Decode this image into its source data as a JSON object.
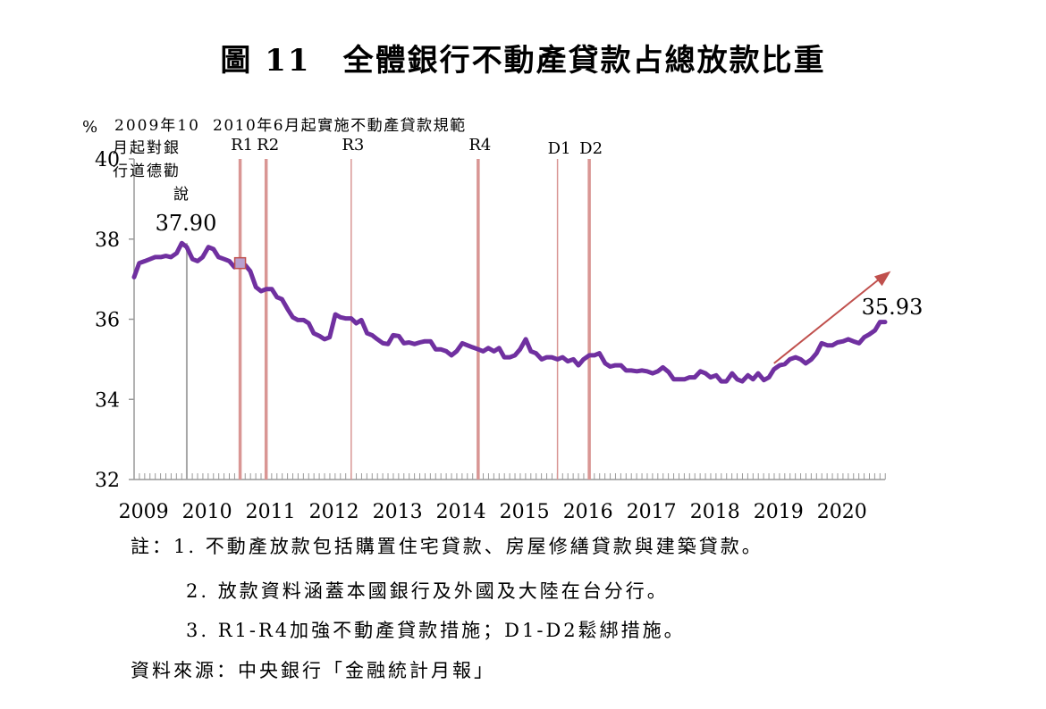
{
  "figure": {
    "title": "圖 11　全體銀行不動產貸款占總放款比重",
    "notes": [
      "註：1. 不動產放款包括購置住宅貸款、房屋修繕貸款與建築貸款。",
      "2. 放款資料涵蓋本國銀行及外國及大陸在台分行。",
      "3. R1-R4加強不動產貸款措施；D1-D2鬆綁措施。"
    ],
    "source": "資料來源：中央銀行「金融統計月報」"
  },
  "chart_data": {
    "type": "line",
    "title": "圖 11　全體銀行不動產貸款占總放款比重",
    "ylabel": "%",
    "xlabel": "",
    "ylim": [
      32,
      40
    ],
    "yticks": [
      32,
      34,
      36,
      38,
      40
    ],
    "x_start": 2009,
    "x_end": 2020.83,
    "x_ticks": [
      "2009",
      "2010",
      "2011",
      "2012",
      "2013",
      "2014",
      "2015",
      "2016",
      "2017",
      "2018",
      "2019",
      "2020"
    ],
    "series": [
      {
        "color": "#7030a0",
        "x": [
          2009.0,
          2009.08,
          2009.17,
          2009.25,
          2009.33,
          2009.42,
          2009.5,
          2009.58,
          2009.67,
          2009.75,
          2009.83,
          2009.92,
          2010.0,
          2010.08,
          2010.17,
          2010.25,
          2010.33,
          2010.42,
          2010.5,
          2010.58,
          2010.67,
          2010.75,
          2010.83,
          2010.92,
          2011.0,
          2011.08,
          2011.17,
          2011.25,
          2011.33,
          2011.42,
          2011.5,
          2011.58,
          2011.67,
          2011.75,
          2011.83,
          2011.92,
          2012.0,
          2012.08,
          2012.17,
          2012.25,
          2012.33,
          2012.42,
          2012.5,
          2012.58,
          2012.67,
          2012.75,
          2012.83,
          2012.92,
          2013.0,
          2013.08,
          2013.17,
          2013.25,
          2013.33,
          2013.42,
          2013.5,
          2013.58,
          2013.67,
          2013.75,
          2013.83,
          2013.92,
          2014.0,
          2014.08,
          2014.17,
          2014.25,
          2014.33,
          2014.42,
          2014.5,
          2014.58,
          2014.67,
          2014.75,
          2014.83,
          2014.92,
          2015.0,
          2015.08,
          2015.17,
          2015.25,
          2015.33,
          2015.42,
          2015.5,
          2015.58,
          2015.67,
          2015.75,
          2015.83,
          2015.92,
          2016.0,
          2016.08,
          2016.17,
          2016.25,
          2016.33,
          2016.42,
          2016.5,
          2016.58,
          2016.67,
          2016.75,
          2016.83,
          2016.92,
          2017.0,
          2017.08,
          2017.17,
          2017.25,
          2017.33,
          2017.42,
          2017.5,
          2017.58,
          2017.67,
          2017.75,
          2017.83,
          2017.92,
          2018.0,
          2018.08,
          2018.17,
          2018.25,
          2018.33,
          2018.42,
          2018.5,
          2018.58,
          2018.67,
          2018.75,
          2018.83,
          2018.92,
          2019.0,
          2019.08,
          2019.17,
          2019.25,
          2019.33,
          2019.42,
          2019.5,
          2019.58,
          2019.67,
          2019.75,
          2019.83,
          2019.92,
          2020.0,
          2020.08,
          2020.17,
          2020.25,
          2020.33,
          2020.42,
          2020.5,
          2020.58,
          2020.67,
          2020.75,
          2020.83
        ],
        "values": [
          37.05,
          37.4,
          37.45,
          37.5,
          37.55,
          37.55,
          37.58,
          37.55,
          37.65,
          37.9,
          37.8,
          37.5,
          37.45,
          37.55,
          37.8,
          37.75,
          37.55,
          37.5,
          37.45,
          37.3,
          37.4,
          37.35,
          37.2,
          36.8,
          36.7,
          36.75,
          36.75,
          36.55,
          36.5,
          36.25,
          36.05,
          35.98,
          35.98,
          35.9,
          35.65,
          35.58,
          35.5,
          35.55,
          36.12,
          36.05,
          36.02,
          36.02,
          35.9,
          35.98,
          35.65,
          35.6,
          35.5,
          35.4,
          35.38,
          35.6,
          35.58,
          35.4,
          35.42,
          35.38,
          35.42,
          35.45,
          35.45,
          35.25,
          35.25,
          35.2,
          35.1,
          35.2,
          35.4,
          35.35,
          35.3,
          35.25,
          35.2,
          35.28,
          35.2,
          35.28,
          35.05,
          35.05,
          35.1,
          35.25,
          35.5,
          35.2,
          35.15,
          35.0,
          35.05,
          35.05,
          35.0,
          35.05,
          34.95,
          35.0,
          34.85,
          35.0,
          35.1,
          35.1,
          35.15,
          34.9,
          34.82,
          34.85,
          34.85,
          34.72,
          34.72,
          34.7,
          34.72,
          34.7,
          34.65,
          34.7,
          34.8,
          34.68,
          34.5,
          34.5,
          34.5,
          34.55,
          34.55,
          34.7,
          34.65,
          34.55,
          34.6,
          34.45,
          34.45,
          34.65,
          34.5,
          34.45,
          34.6,
          34.5,
          34.65,
          34.48,
          34.55,
          34.75,
          34.85,
          34.88,
          35.0,
          35.05,
          35.0,
          34.9,
          35.0,
          35.15,
          35.4,
          35.35,
          35.35,
          35.42,
          35.45,
          35.5,
          35.45,
          35.4,
          35.55,
          35.62,
          35.72,
          35.93,
          35.93
        ]
      }
    ],
    "annotations": [
      {
        "x": 2009.83,
        "y": 37.9,
        "text": "37.90"
      },
      {
        "x": 2020.83,
        "y": 35.93,
        "text": "35.93"
      }
    ],
    "trend_arrow": {
      "from": [
        2019.08,
        34.9
      ],
      "to": [
        2020.92,
        37.2
      ],
      "color": "#c0504d"
    },
    "highlight_marker": {
      "x": 2010.67,
      "y": 37.4
    },
    "policy_lines": [
      {
        "label": "R1",
        "x": 2010.67,
        "color": "#d99694"
      },
      {
        "label": "R2",
        "x": 2011.08,
        "color": "#d99694"
      },
      {
        "label": "R3",
        "x": 2012.42,
        "color": "#d99694"
      },
      {
        "label": "R4",
        "x": 2014.42,
        "color": "#d99694"
      },
      {
        "label": "D1",
        "x": 2015.67,
        "color": "#d99694"
      },
      {
        "label": "D2",
        "x": 2016.17,
        "color": "#d99694"
      }
    ],
    "guidance_line": {
      "x": 2009.83,
      "label_lines": [
        "2009年10",
        "月起對銀",
        "行道德勸",
        "說"
      ]
    },
    "policy_caption": "2010年6月起實施不動產貸款規範"
  }
}
